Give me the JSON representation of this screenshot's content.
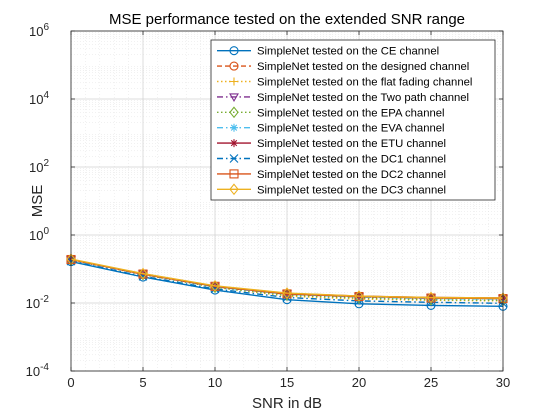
{
  "chart_data": {
    "type": "line",
    "title": "MSE performance tested on the extended SNR range",
    "xlabel": "SNR in dB",
    "ylabel": "MSE",
    "xlim": [
      0,
      30
    ],
    "ylim": [
      0.0001,
      1000000
    ],
    "yscale": "log",
    "grid": true,
    "minor_grid": true,
    "legend_position": "top-right",
    "x_ticks": [
      "0",
      "5",
      "10",
      "15",
      "20",
      "25",
      "30"
    ],
    "y_tick_bases": [
      "10",
      "10",
      "10",
      "10",
      "10",
      "10"
    ],
    "y_tick_exps": [
      "-4",
      "-2",
      "0",
      "2",
      "4",
      "6"
    ],
    "x": [
      0,
      5,
      10,
      15,
      20,
      25,
      30
    ],
    "series": [
      {
        "name": "SimpleNet tested on the CE channel",
        "color": "#0072BD",
        "dash": "solid",
        "marker": "circle",
        "values": [
          0.165,
          0.058,
          0.024,
          0.0125,
          0.0095,
          0.0085,
          0.008
        ]
      },
      {
        "name": "SimpleNet tested on the designed channel",
        "color": "#D95319",
        "dash": "dashed",
        "marker": "circle",
        "values": [
          0.19,
          0.07,
          0.03,
          0.018,
          0.015,
          0.014,
          0.0135
        ]
      },
      {
        "name": "SimpleNet tested on the flat fading channel",
        "color": "#EDB120",
        "dash": "dotted",
        "marker": "plus",
        "values": [
          0.185,
          0.068,
          0.029,
          0.016,
          0.013,
          0.012,
          0.0115
        ]
      },
      {
        "name": "SimpleNet tested on the Two path channel",
        "color": "#7E2F8E",
        "dash": "dashdot",
        "marker": "triangle-down",
        "values": [
          0.19,
          0.071,
          0.031,
          0.019,
          0.0155,
          0.014,
          0.0135
        ]
      },
      {
        "name": "SimpleNet tested on the EPA channel",
        "color": "#77AC30",
        "dash": "dotted",
        "marker": "diamond",
        "values": [
          0.185,
          0.069,
          0.029,
          0.017,
          0.014,
          0.0125,
          0.012
        ]
      },
      {
        "name": "SimpleNet tested on the EVA channel",
        "color": "#4DBEEE",
        "dash": "dashdot",
        "marker": "star",
        "values": [
          0.185,
          0.07,
          0.03,
          0.018,
          0.015,
          0.0135,
          0.013
        ]
      },
      {
        "name": "SimpleNet tested on the ETU channel",
        "color": "#A2142F",
        "dash": "solid",
        "marker": "star",
        "values": [
          0.19,
          0.071,
          0.031,
          0.019,
          0.016,
          0.0145,
          0.014
        ]
      },
      {
        "name": "SimpleNet tested on the DC1 channel",
        "color": "#0072BD",
        "dash": "dashdot",
        "marker": "x",
        "values": [
          0.17,
          0.061,
          0.026,
          0.0145,
          0.0115,
          0.0105,
          0.0098
        ]
      },
      {
        "name": "SimpleNet tested on the DC2 channel",
        "color": "#D95319",
        "dash": "solid",
        "marker": "square",
        "values": [
          0.19,
          0.071,
          0.031,
          0.0185,
          0.0155,
          0.014,
          0.0135
        ]
      },
      {
        "name": "SimpleNet tested on the DC3 channel",
        "color": "#EDB120",
        "dash": "solid",
        "marker": "diamond",
        "values": [
          0.195,
          0.073,
          0.032,
          0.0195,
          0.016,
          0.0145,
          0.014
        ]
      }
    ]
  }
}
